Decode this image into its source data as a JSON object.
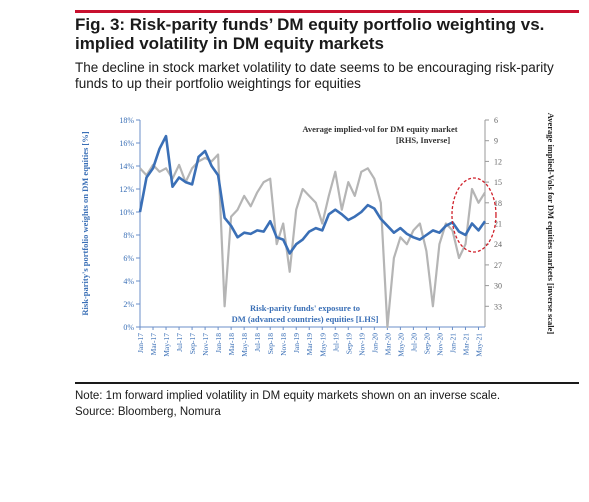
{
  "header": {
    "title": "Fig. 3: Risk-parity funds’ DM equity portfolio weighting vs. implied volatility in DM equity markets",
    "subtitle": "The decline in stock market volatility to date seems to be encouraging risk-parity funds to up their portfolio weightings for equities"
  },
  "footer": {
    "note": "Note: 1m forward implied volatility in DM equity markets shown on an inverse scale.",
    "source": "Source: Bloomberg, Nomura"
  },
  "colors": {
    "accent_rule": "#c8102e",
    "lhs_series": "#3a6fb6",
    "rhs_series": "#b5b5b5",
    "circle": "#d0202a"
  },
  "chart_data": {
    "type": "line",
    "ylabel_left": "Risk-parity's portfolio weights on DM equities [%]",
    "ylabel_right": "Average implied-Vols for DM equities markets [inverse scale]",
    "ylim_left": [
      0,
      18
    ],
    "ylim_right": [
      6,
      36
    ],
    "right_axis_inverted": true,
    "yticks_left": [
      "0%",
      "2%",
      "4%",
      "6%",
      "8%",
      "10%",
      "12%",
      "14%",
      "16%",
      "18%"
    ],
    "yticks_left_values": [
      0,
      2,
      4,
      6,
      8,
      10,
      12,
      14,
      16,
      18
    ],
    "yticks_right": [
      "6",
      "9",
      "12",
      "15",
      "18",
      "21",
      "24",
      "27",
      "30",
      "33"
    ],
    "yticks_right_values": [
      6,
      9,
      12,
      15,
      18,
      21,
      24,
      27,
      30,
      33
    ],
    "x_ticks": [
      "Jan-17",
      "Mar-17",
      "May-17",
      "Jul-17",
      "Sep-17",
      "Nov-17",
      "Jan-18",
      "Mar-18",
      "May-18",
      "Jul-18",
      "Sep-18",
      "Nov-18",
      "Jan-19",
      "Mar-19",
      "May-19",
      "Jul-19",
      "Sep-19",
      "Nov-19",
      "Jan-20",
      "Mar-20",
      "May-20",
      "Jul-20",
      "Sep-20",
      "Nov-20",
      "Jan-21",
      "Mar-21",
      "May-21"
    ],
    "x_range": [
      "Jan-17",
      "Jun-21"
    ],
    "grid": false,
    "series": [
      {
        "name": "Risk-parity funds' exposure to DM (advanced countries) equities [LHS]",
        "axis": "left",
        "x": [
          "Jan-17",
          "Feb-17",
          "Mar-17",
          "Apr-17",
          "May-17",
          "Jun-17",
          "Jul-17",
          "Aug-17",
          "Sep-17",
          "Oct-17",
          "Nov-17",
          "Dec-17",
          "Jan-18",
          "Feb-18",
          "Mar-18",
          "Apr-18",
          "May-18",
          "Jun-18",
          "Jul-18",
          "Aug-18",
          "Sep-18",
          "Oct-18",
          "Nov-18",
          "Dec-18",
          "Jan-19",
          "Feb-19",
          "Mar-19",
          "Apr-19",
          "May-19",
          "Jun-19",
          "Jul-19",
          "Aug-19",
          "Sep-19",
          "Oct-19",
          "Nov-19",
          "Dec-19",
          "Jan-20",
          "Feb-20",
          "Mar-20",
          "Apr-20",
          "May-20",
          "Jun-20",
          "Jul-20",
          "Aug-20",
          "Sep-20",
          "Oct-20",
          "Nov-20",
          "Dec-20",
          "Jan-21",
          "Feb-21",
          "Mar-21",
          "Apr-21",
          "May-21",
          "Jun-21"
        ],
        "values": [
          10.0,
          13.0,
          13.8,
          15.5,
          16.6,
          12.2,
          13.0,
          12.6,
          12.4,
          14.8,
          15.3,
          14.0,
          13.2,
          9.5,
          8.8,
          7.8,
          8.2,
          8.1,
          8.4,
          8.3,
          9.2,
          7.8,
          7.6,
          6.4,
          7.2,
          7.6,
          8.3,
          8.6,
          8.4,
          9.8,
          10.2,
          9.8,
          9.3,
          9.6,
          10.0,
          10.6,
          10.3,
          9.4,
          8.8,
          8.2,
          8.6,
          8.1,
          7.8,
          7.6,
          8.0,
          8.4,
          8.2,
          8.8,
          9.1,
          8.3,
          8.0,
          9.0,
          8.4,
          9.2
        ]
      },
      {
        "name": "Average implied-vol for DM equity market [RHS, Inverse]",
        "axis": "right",
        "x": [
          "Jan-17",
          "Feb-17",
          "Mar-17",
          "Apr-17",
          "May-17",
          "Jun-17",
          "Jul-17",
          "Aug-17",
          "Sep-17",
          "Oct-17",
          "Nov-17",
          "Dec-17",
          "Jan-18",
          "Feb-18",
          "Mar-18",
          "Apr-18",
          "May-18",
          "Jun-18",
          "Jul-18",
          "Aug-18",
          "Sep-18",
          "Oct-18",
          "Nov-18",
          "Dec-18",
          "Jan-19",
          "Feb-19",
          "Mar-19",
          "Apr-19",
          "May-19",
          "Jun-19",
          "Jul-19",
          "Aug-19",
          "Sep-19",
          "Oct-19",
          "Nov-19",
          "Dec-19",
          "Jan-20",
          "Feb-20",
          "Mar-20",
          "Apr-20",
          "May-20",
          "Jun-20",
          "Jul-20",
          "Aug-20",
          "Sep-20",
          "Oct-20",
          "Nov-20",
          "Dec-20",
          "Jan-21",
          "Feb-21",
          "Mar-21",
          "Apr-21",
          "May-21",
          "Jun-21"
        ],
        "values": [
          13.0,
          14.0,
          12.5,
          13.5,
          13.0,
          14.5,
          12.5,
          15.0,
          13.0,
          12.0,
          11.5,
          12.0,
          11.0,
          33.0,
          20.0,
          19.0,
          17.0,
          18.5,
          16.5,
          15.0,
          14.5,
          24.0,
          21.0,
          28.0,
          19.0,
          16.0,
          17.0,
          18.0,
          21.0,
          17.0,
          13.5,
          19.0,
          15.0,
          17.0,
          13.5,
          13.0,
          14.5,
          18.0,
          36.0,
          26.0,
          23.0,
          24.0,
          22.0,
          21.0,
          25.0,
          33.0,
          24.0,
          21.0,
          22.0,
          26.0,
          24.0,
          16.0,
          18.0,
          16.5
        ]
      }
    ]
  }
}
